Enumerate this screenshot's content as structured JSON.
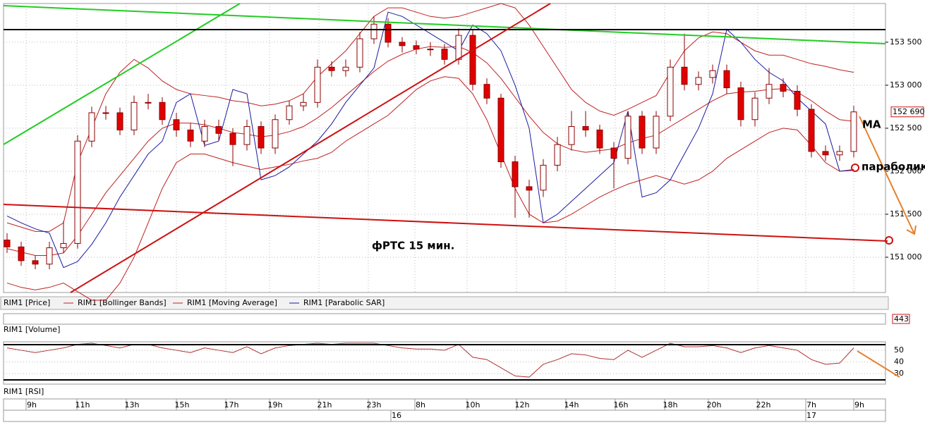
{
  "chart_data": {
    "type": "candlestick",
    "title": "фРТС   15 мин.",
    "annotations": [
      "MA",
      "параболик"
    ],
    "legend": [
      "RIM1 [Price]",
      "RIM1 [Bollinger Bands]",
      "RIM1 [Moving Average]",
      "RIM1 [Parabolic SAR]"
    ],
    "colors": {
      "down": "#e00000",
      "up": "#ffffff",
      "candle_edge": "#8b0000",
      "bands": "#c02020",
      "ma": "#c02020",
      "sar": "#1a1aa0",
      "rsi": "#b03030"
    },
    "open": [
      151200,
      151120,
      150960,
      150920,
      151110,
      151160,
      152350,
      152680,
      152680,
      152480,
      152800,
      152800,
      152600,
      152480,
      152350,
      152520,
      152440,
      152310,
      152520,
      152270,
      152600,
      152760,
      152800,
      153210,
      153170,
      153210,
      153540,
      153710,
      153500,
      153460,
      153420,
      153420,
      153300,
      153580,
      153010,
      152850,
      152110,
      151820,
      151780,
      152070,
      152310,
      152520,
      152480,
      152270,
      152150,
      152640,
      152270,
      152640,
      153210,
      153010,
      153090,
      153170,
      152970,
      152600,
      152850,
      153010,
      152930,
      152720,
      152230,
      152190,
      152230
    ],
    "high": [
      151280,
      151180,
      151020,
      151180,
      151420,
      152420,
      152750,
      152760,
      152740,
      152880,
      152900,
      152860,
      152680,
      152560,
      152600,
      152600,
      152500,
      152600,
      152580,
      152660,
      152820,
      152900,
      153300,
      153280,
      153300,
      153620,
      153800,
      153780,
      153560,
      153520,
      153500,
      153480,
      153660,
      153640,
      153080,
      152900,
      152180,
      151900,
      152140,
      152400,
      152700,
      152700,
      152540,
      152340,
      152700,
      152700,
      152700,
      153300,
      153600,
      153160,
      153240,
      153240,
      153040,
      152920,
      153200,
      153080,
      153000,
      152780,
      152300,
      152300,
      152760
    ],
    "low": [
      151050,
      150900,
      150860,
      150860,
      151050,
      151100,
      152280,
      152600,
      152420,
      152420,
      152720,
      152540,
      152400,
      152280,
      152280,
      152360,
      152060,
      152240,
      152200,
      152200,
      152540,
      152700,
      152740,
      153100,
      153100,
      153150,
      153480,
      153440,
      153380,
      153360,
      153340,
      153240,
      153240,
      152940,
      152780,
      152040,
      151460,
      151460,
      151700,
      152000,
      152240,
      152400,
      152200,
      151800,
      152080,
      152200,
      152200,
      152580,
      152940,
      152940,
      153020,
      152900,
      152520,
      152520,
      152780,
      152860,
      152640,
      152160,
      152120,
      152120,
      152160
    ],
    "close": [
      151120,
      150960,
      150920,
      151110,
      151160,
      152350,
      152680,
      152680,
      152480,
      152800,
      152800,
      152600,
      152480,
      152350,
      152520,
      152440,
      152310,
      152520,
      152270,
      152600,
      152760,
      152800,
      153210,
      153170,
      153210,
      153540,
      153710,
      153500,
      153460,
      153420,
      153420,
      153300,
      153580,
      153010,
      152850,
      152110,
      151820,
      151780,
      152070,
      152310,
      152520,
      152480,
      152270,
      152150,
      152640,
      152270,
      152640,
      153210,
      153010,
      153090,
      153170,
      152970,
      152600,
      152850,
      153010,
      152930,
      152720,
      152230,
      152190,
      152230,
      152690
    ],
    "ma": [
      151100,
      151060,
      151020,
      151020,
      151050,
      151250,
      151500,
      151750,
      151950,
      152150,
      152350,
      152500,
      152560,
      152560,
      152540,
      152500,
      152450,
      152430,
      152400,
      152420,
      152460,
      152520,
      152620,
      152740,
      152880,
      153020,
      153160,
      153280,
      153360,
      153420,
      153450,
      153440,
      153450,
      153380,
      153260,
      153080,
      152860,
      152640,
      152450,
      152320,
      152250,
      152220,
      152240,
      152260,
      152330,
      152380,
      152420,
      152520,
      152620,
      152720,
      152820,
      152900,
      152920,
      152930,
      152950,
      152960,
      152920,
      152820,
      152700,
      152600,
      152580
    ],
    "bb_upper": [
      151400,
      151350,
      151300,
      151300,
      151400,
      152100,
      152500,
      152900,
      153150,
      153300,
      153200,
      153050,
      152950,
      152900,
      152880,
      152860,
      152820,
      152800,
      152760,
      152780,
      152820,
      152900,
      153100,
      153250,
      153400,
      153600,
      153800,
      153900,
      153900,
      153850,
      153800,
      153780,
      153800,
      153850,
      153900,
      153950,
      153900,
      153700,
      153450,
      153200,
      152950,
      152800,
      152700,
      152650,
      152720,
      152800,
      152880,
      153150,
      153400,
      153550,
      153620,
      153600,
      153500,
      153400,
      153350,
      153350,
      153300,
      153250,
      153220,
      153180,
      153150
    ],
    "bb_lower": [
      150700,
      150650,
      150620,
      150650,
      150700,
      150600,
      150500,
      150500,
      150700,
      151000,
      151400,
      151800,
      152100,
      152200,
      152200,
      152150,
      152100,
      152060,
      152020,
      152050,
      152080,
      152120,
      152150,
      152220,
      152350,
      152450,
      152550,
      152650,
      152800,
      152950,
      153050,
      153100,
      153080,
      152900,
      152600,
      152200,
      151800,
      151500,
      151400,
      151420,
      151500,
      151600,
      151700,
      151780,
      151850,
      151900,
      151950,
      151900,
      151850,
      151900,
      152000,
      152150,
      152250,
      152350,
      152450,
      152500,
      152480,
      152300,
      152100,
      152000,
      152010
    ],
    "sar": [
      151480,
      151400,
      151330,
      151280,
      150880,
      150950,
      151150,
      151400,
      151700,
      151950,
      152200,
      152350,
      152800,
      152900,
      152300,
      152350,
      152950,
      152900,
      151900,
      151950,
      152050,
      152200,
      152350,
      152550,
      152800,
      153000,
      153200,
      153850,
      153800,
      153700,
      153600,
      153500,
      153400,
      153700,
      153600,
      153400,
      153000,
      152500,
      151400,
      151500,
      151650,
      151800,
      151950,
      152100,
      152700,
      151700,
      151750,
      151900,
      152200,
      152500,
      152900,
      153650,
      153500,
      153300,
      153150,
      153050,
      152850,
      152700,
      152550,
      152000,
      152020
    ],
    "ylim": [
      150590,
      153950
    ],
    "yticks": [
      {
        "value": 151000,
        "label": "151 000"
      },
      {
        "value": 151500,
        "label": "151 500"
      },
      {
        "value": 152000,
        "label": "152 000"
      },
      {
        "value": 152500,
        "label": "152 500"
      },
      {
        "value": 153000,
        "label": "153 000"
      },
      {
        "value": 153500,
        "label": "153 500"
      }
    ],
    "last_price": {
      "value": 152690,
      "label": "152 690"
    },
    "volume_title": "RIM1 [Volume]",
    "volume_max": 443,
    "rsi_title": "RIM1 [RSI]",
    "rsi": [
      52,
      50,
      48,
      50,
      52,
      55,
      56,
      54,
      52,
      55,
      55,
      52,
      50,
      48,
      52,
      50,
      48,
      53,
      47,
      52,
      54,
      55,
      56,
      55,
      56,
      56,
      56,
      54,
      52,
      51,
      51,
      50,
      55,
      44,
      42,
      35,
      28,
      27,
      38,
      42,
      47,
      46,
      43,
      42,
      50,
      44,
      50,
      56,
      53,
      53,
      54,
      52,
      48,
      52,
      54,
      52,
      50,
      42,
      38,
      39,
      52
    ],
    "rsi_ylim": [
      21,
      56
    ],
    "rsi_yticks": [
      50,
      40,
      30
    ],
    "x_labels": [
      "9h",
      "11h",
      "13h",
      "15h",
      "17h",
      "19h",
      "21h",
      "23h",
      "8h",
      "10h",
      "12h",
      "14h",
      "16h",
      "18h",
      "20h",
      "22h",
      "7h",
      "9h"
    ],
    "date_labels": [
      "16",
      "17"
    ],
    "grid": true
  }
}
